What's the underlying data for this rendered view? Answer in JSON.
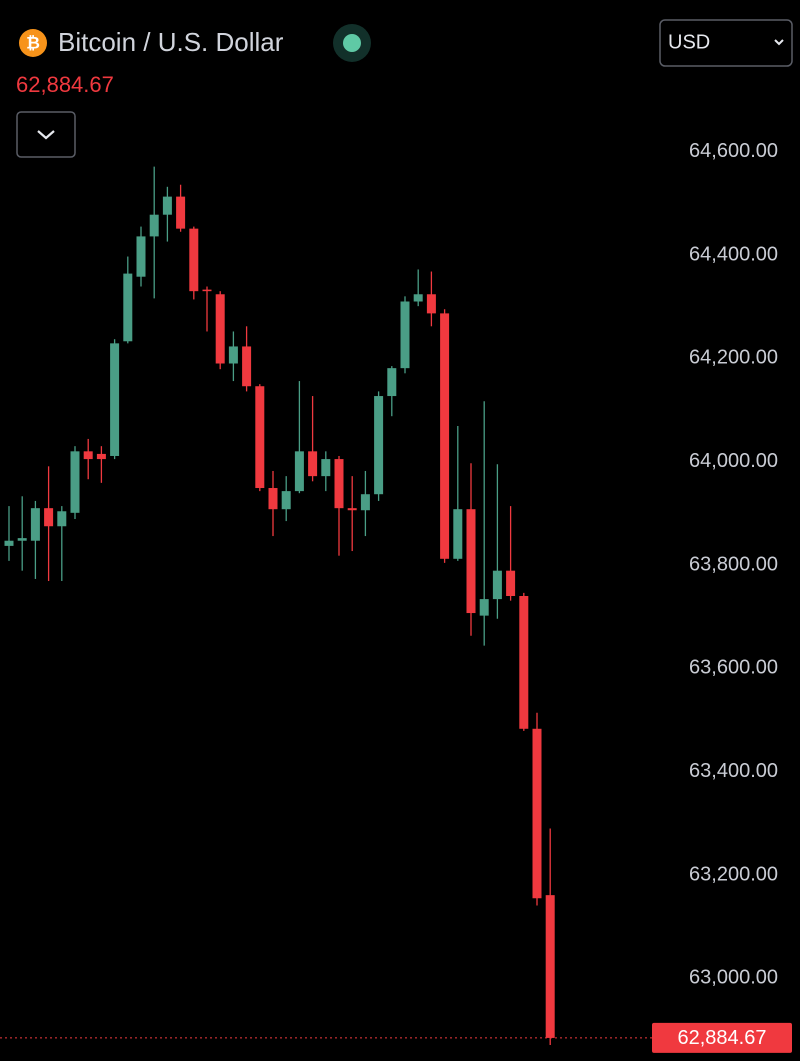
{
  "header": {
    "icon": "₿",
    "title": "Bitcoin / U.S. Dollar",
    "currency": "USD"
  },
  "chart_data": {
    "type": "candlestick",
    "price": {
      "value": 62884.67,
      "label": "62,884.67"
    },
    "up_color": "#4a9e86",
    "down_color": "#f0393f",
    "ylim": [
      62840,
      64700
    ],
    "yticks": [
      {
        "value": 64600,
        "label": "64,600.00"
      },
      {
        "value": 64400,
        "label": "64,400.00"
      },
      {
        "value": 64200,
        "label": "64,200.00"
      },
      {
        "value": 64000,
        "label": "64,000.00"
      },
      {
        "value": 63800,
        "label": "63,800.00"
      },
      {
        "value": 63600,
        "label": "63,600.00"
      },
      {
        "value": 63400,
        "label": "63,400.00"
      },
      {
        "value": 63200,
        "label": "63,200.00"
      },
      {
        "value": 63000,
        "label": "63,000.00"
      }
    ],
    "open": [
      63837,
      63847,
      63847,
      63910,
      63875,
      63901,
      64020,
      64015,
      64011,
      64233,
      64358,
      64436,
      64478,
      64513,
      64451,
      64333,
      64324,
      64190,
      64223,
      64146,
      63949,
      63908,
      63943,
      64020,
      63972,
      64005,
      63910,
      63906,
      63937,
      64127,
      64181,
      64310,
      64324,
      64287,
      63812,
      63908,
      63702,
      63734,
      63789,
      63740,
      63483,
      63161
    ],
    "high": [
      63914,
      63933,
      63924,
      63991,
      63914,
      64030,
      64044,
      64030,
      64237,
      64397,
      64455,
      64571,
      64532,
      64536,
      64455,
      64339,
      64330,
      64252,
      64262,
      64150,
      63982,
      63972,
      64156,
      64127,
      64020,
      64011,
      63972,
      63982,
      64136,
      64185,
      64320,
      64372,
      64368,
      64295,
      64069,
      63997,
      64117,
      63995,
      63914,
      63746,
      63514,
      63290
    ],
    "low": [
      63808,
      63789,
      63773,
      63769,
      63769,
      63889,
      63966,
      63959,
      64005,
      64229,
      64339,
      64316,
      64426,
      64445,
      64314,
      64252,
      64179,
      64156,
      64136,
      63943,
      63856,
      63885,
      63939,
      63962,
      63943,
      63818,
      63827,
      63856,
      63924,
      64088,
      64171,
      64301,
      64262,
      63804,
      63808,
      63663,
      63644,
      63696,
      63731,
      63479,
      63141,
      62871
    ],
    "close": [
      63847,
      63852,
      63910,
      63875,
      63904,
      64020,
      64005,
      64005,
      64229,
      64364,
      64436,
      64478,
      64513,
      64451,
      64330,
      64330,
      64190,
      64223,
      64146,
      63949,
      63908,
      63943,
      64020,
      63972,
      64005,
      63910,
      63906,
      63937,
      64127,
      64181,
      64310,
      64324,
      64287,
      63812,
      63908,
      63707,
      63734,
      63789,
      63740,
      63483,
      63155,
      62884.67
    ]
  }
}
